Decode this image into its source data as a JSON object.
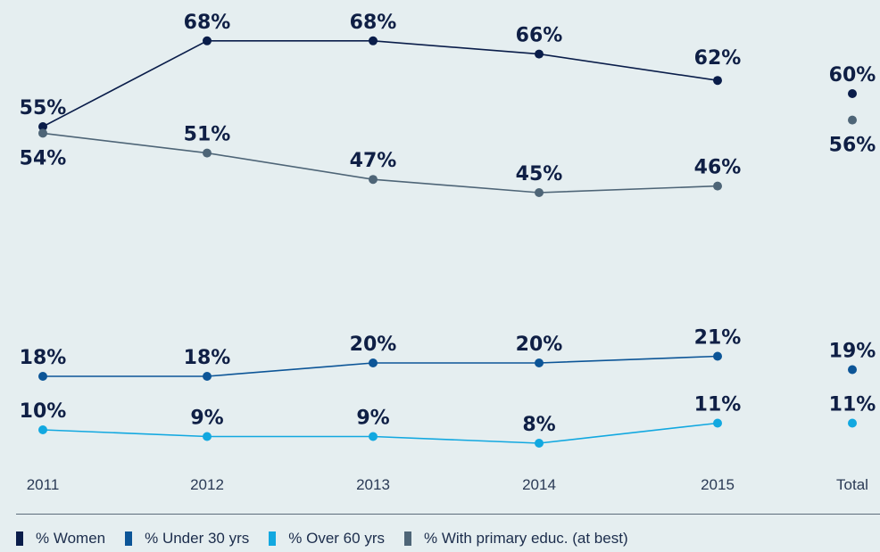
{
  "chart_data": {
    "type": "line",
    "categories": [
      "2011",
      "2012",
      "2013",
      "2014",
      "2015",
      "Total"
    ],
    "series": [
      {
        "name": "% Women",
        "color": "#0a1d4a",
        "values": [
          55,
          68,
          68,
          66,
          62,
          60
        ],
        "labels": [
          "55%",
          "68%",
          "68%",
          "66%",
          "62%",
          "60%"
        ]
      },
      {
        "name": "% With primary educ. (at best)",
        "color": "#4e6577",
        "values": [
          54,
          51,
          47,
          45,
          46,
          56
        ],
        "labels": [
          "54%",
          "51%",
          "47%",
          "45%",
          "46%",
          "56%"
        ]
      },
      {
        "name": "% Under 30 yrs",
        "color": "#0c5597",
        "values": [
          18,
          18,
          20,
          20,
          21,
          19
        ],
        "labels": [
          "18%",
          "18%",
          "20%",
          "20%",
          "21%",
          "19%"
        ]
      },
      {
        "name": "% Over 60 yrs",
        "color": "#12a8e0",
        "values": [
          10,
          9,
          9,
          8,
          11,
          11
        ],
        "labels": [
          "10%",
          "9%",
          "9%",
          "8%",
          "11%",
          "11%"
        ]
      }
    ],
    "legend": [
      {
        "name": "% Women",
        "color": "#0a1d4a"
      },
      {
        "name": "% Under 30 yrs",
        "color": "#0c5597"
      },
      {
        "name": "% Over 60 yrs",
        "color": "#12a8e0"
      },
      {
        "name": "% With primary educ. (at best)",
        "color": "#4e6577"
      }
    ],
    "total_unconnected": true,
    "legend_position": "bottom",
    "grid": false
  }
}
